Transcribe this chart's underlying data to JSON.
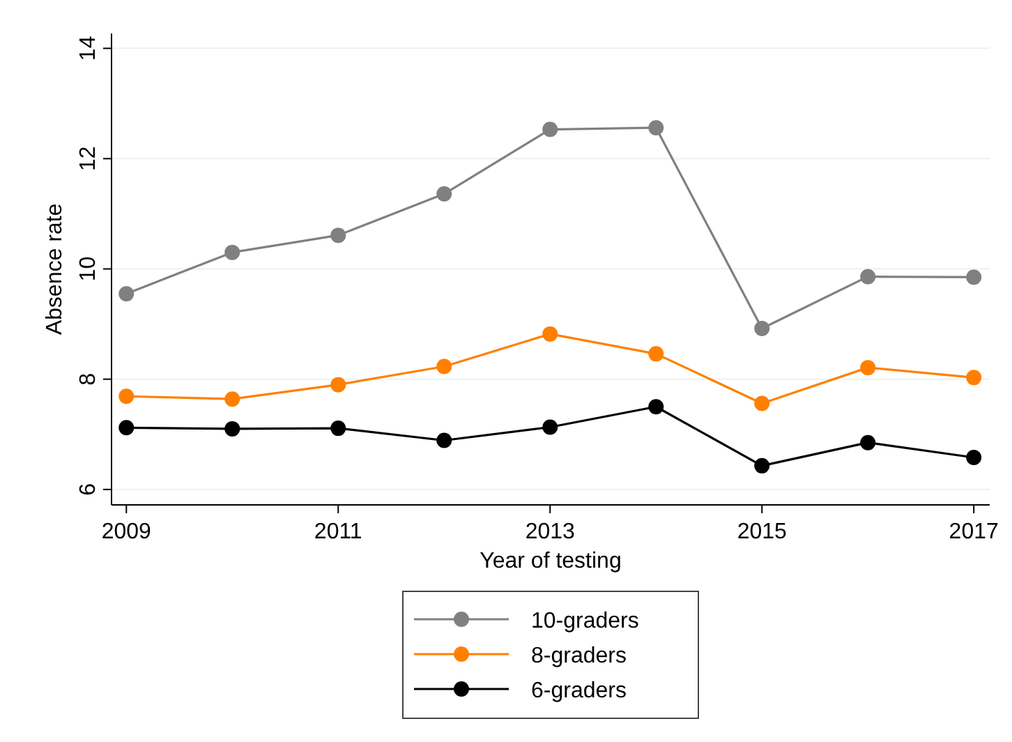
{
  "chart_data": {
    "type": "line",
    "xlabel": "Year of testing",
    "ylabel": "Absence rate",
    "x": [
      2009,
      2010,
      2011,
      2012,
      2013,
      2014,
      2015,
      2016,
      2017
    ],
    "series": [
      {
        "name": "10-graders",
        "color": "#808080",
        "values": [
          9.55,
          10.3,
          10.61,
          11.36,
          12.53,
          12.56,
          8.92,
          9.86,
          9.85
        ]
      },
      {
        "name": "8-graders",
        "color": "#ff8000",
        "values": [
          7.69,
          7.64,
          7.9,
          8.23,
          8.82,
          8.46,
          7.56,
          8.21,
          8.03
        ]
      },
      {
        "name": "6-graders",
        "color": "#000000",
        "values": [
          7.12,
          7.1,
          7.11,
          6.89,
          7.13,
          7.5,
          6.43,
          6.85,
          6.58
        ]
      }
    ],
    "xlim": [
      2008.86,
      2017.15
    ],
    "xticks": [
      2009,
      2011,
      2013,
      2015,
      2017
    ],
    "ylim": [
      5.72,
      14.27
    ],
    "yticks": [
      6,
      8,
      10,
      12,
      14
    ],
    "grid": "y",
    "legend": "bottom",
    "marker": "circle",
    "line_style": "solid"
  }
}
